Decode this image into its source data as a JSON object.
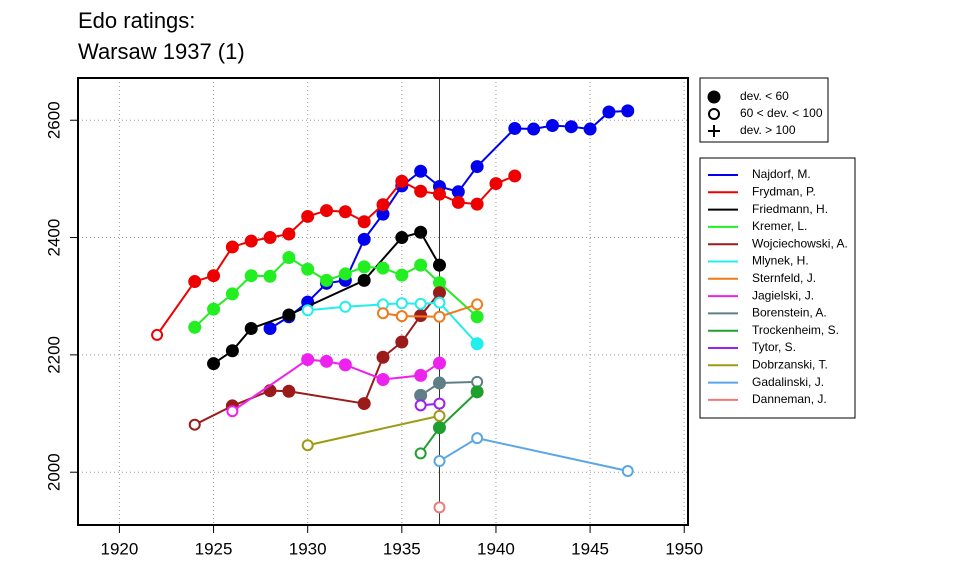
{
  "chart_data": {
    "type": "line",
    "title": "Edo ratings:",
    "subtitle": "Warsaw 1937 (1)",
    "xlim": [
      1917.8,
      1950.2
    ],
    "ylim": [
      1910,
      2672
    ],
    "xticks": [
      1920,
      1925,
      1930,
      1935,
      1940,
      1945,
      1950
    ],
    "yticks": [
      2000,
      2200,
      2400,
      2600
    ],
    "grid": true,
    "vline": 1937,
    "marker_legend": [
      {
        "label": "dev. < 60",
        "shape": "filled"
      },
      {
        "label": "60 < dev. < 100",
        "shape": "open"
      },
      {
        "label": "dev. > 100",
        "shape": "plus"
      }
    ],
    "series": [
      {
        "name": "Najdorf, M.",
        "color": "#0000ee",
        "x": [
          1928,
          1929,
          1930,
          1931,
          1932,
          1933,
          1934,
          1935,
          1936,
          1937,
          1938,
          1939,
          1941,
          1942,
          1943,
          1944,
          1945,
          1946,
          1947
        ],
        "values": [
          2245,
          2265,
          2290,
          2322,
          2327,
          2397,
          2440,
          2488,
          2513,
          2487,
          2478,
          2521,
          2586,
          2585,
          2591,
          2589,
          2585,
          2614,
          2616
        ],
        "markers": [
          "filled",
          "filled",
          "filled",
          "filled",
          "filled",
          "filled",
          "filled",
          "filled",
          "filled",
          "filled",
          "filled",
          "filled",
          "filled",
          "filled",
          "filled",
          "filled",
          "filled",
          "filled",
          "filled"
        ]
      },
      {
        "name": "Frydman, P.",
        "color": "#ee0000",
        "x": [
          1922,
          1924,
          1925,
          1926,
          1927,
          1928,
          1929,
          1930,
          1931,
          1932,
          1933,
          1934,
          1935,
          1936,
          1937,
          1938,
          1939,
          1940,
          1941
        ],
        "values": [
          2234,
          2325,
          2335,
          2384,
          2394,
          2400,
          2406,
          2436,
          2446,
          2444,
          2427,
          2456,
          2496,
          2479,
          2474,
          2460,
          2457,
          2492,
          2505
        ],
        "markers": [
          "open",
          "filled",
          "filled",
          "filled",
          "filled",
          "filled",
          "filled",
          "filled",
          "filled",
          "filled",
          "filled",
          "filled",
          "filled",
          "filled",
          "filled",
          "filled",
          "filled",
          "filled",
          "filled"
        ]
      },
      {
        "name": "Friedmann, H.",
        "color": "#000000",
        "x": [
          1925,
          1926,
          1927,
          1929,
          1933,
          1935,
          1936,
          1937
        ],
        "values": [
          2185,
          2207,
          2245,
          2268,
          2327,
          2400,
          2409,
          2353
        ],
        "markers": [
          "filled",
          "filled",
          "filled",
          "filled",
          "filled",
          "filled",
          "filled",
          "filled"
        ]
      },
      {
        "name": "Kremer, L.",
        "color": "#22ee22",
        "x": [
          1924,
          1925,
          1926,
          1927,
          1928,
          1929,
          1930,
          1931,
          1932,
          1933,
          1934,
          1935,
          1936,
          1937,
          1939
        ],
        "values": [
          2247,
          2278,
          2304,
          2335,
          2334,
          2366,
          2346,
          2327,
          2338,
          2350,
          2348,
          2336,
          2353,
          2323,
          2265
        ],
        "markers": [
          "filled",
          "filled",
          "filled",
          "filled",
          "filled",
          "filled",
          "filled",
          "filled",
          "filled",
          "filled",
          "filled",
          "filled",
          "filled",
          "filled",
          "filled"
        ]
      },
      {
        "name": "Wojciechowski, A.",
        "color": "#9b1b1b",
        "x": [
          1924,
          1926,
          1928,
          1929,
          1933,
          1934,
          1935,
          1936,
          1937
        ],
        "values": [
          2081,
          2113,
          2139,
          2138,
          2117,
          2196,
          2222,
          2267,
          2306
        ],
        "markers": [
          "open",
          "filled",
          "filled",
          "filled",
          "filled",
          "filled",
          "filled",
          "filled",
          "filled"
        ]
      },
      {
        "name": "Mlynek, H.",
        "color": "#22eeee",
        "x": [
          1930,
          1932,
          1934,
          1935,
          1936,
          1937,
          1939
        ],
        "values": [
          2276,
          2282,
          2286,
          2288,
          2287,
          2289,
          2219
        ],
        "markers": [
          "open",
          "open",
          "open",
          "open",
          "open",
          "open",
          "filled"
        ]
      },
      {
        "name": "Sternfeld, J.",
        "color": "#f07a1a",
        "x": [
          1934,
          1935,
          1937,
          1939
        ],
        "values": [
          2271,
          2266,
          2265,
          2286
        ],
        "markers": [
          "open",
          "open",
          "open",
          "open"
        ]
      },
      {
        "name": "Jagielski, J.",
        "color": "#ee22ee",
        "x": [
          1926,
          1930,
          1931,
          1932,
          1934,
          1936,
          1937
        ],
        "values": [
          2104,
          2192,
          2189,
          2183,
          2158,
          2165,
          2186
        ],
        "markers": [
          "open",
          "filled",
          "filled",
          "filled",
          "filled",
          "filled",
          "filled"
        ]
      },
      {
        "name": "Borenstein, A.",
        "color": "#5f7f86",
        "x": [
          1936,
          1937,
          1939
        ],
        "values": [
          2131,
          2152,
          2154
        ],
        "markers": [
          "filled",
          "filled",
          "open"
        ]
      },
      {
        "name": "Trockenheim, S.",
        "color": "#1ea02e",
        "x": [
          1936,
          1937,
          1939
        ],
        "values": [
          2032,
          2076,
          2137
        ],
        "markers": [
          "open",
          "filled",
          "filled"
        ]
      },
      {
        "name": "Tytor, S.",
        "color": "#9a22ee",
        "x": [
          1936,
          1937
        ],
        "values": [
          2114,
          2117
        ],
        "markers": [
          "open",
          "open"
        ]
      },
      {
        "name": "Dobrzanski, T.",
        "color": "#9e9a14",
        "x": [
          1930,
          1937
        ],
        "values": [
          2046,
          2096
        ],
        "markers": [
          "open",
          "open"
        ]
      },
      {
        "name": "Gadalinski, J.",
        "color": "#5aa6e6",
        "x": [
          1937,
          1939,
          1947
        ],
        "values": [
          2019,
          2058,
          2002
        ],
        "markers": [
          "open",
          "open",
          "open"
        ]
      },
      {
        "name": "Danneman, J.",
        "color": "#f07a7a",
        "x": [
          1937
        ],
        "values": [
          1940
        ],
        "markers": [
          "open"
        ]
      }
    ]
  }
}
